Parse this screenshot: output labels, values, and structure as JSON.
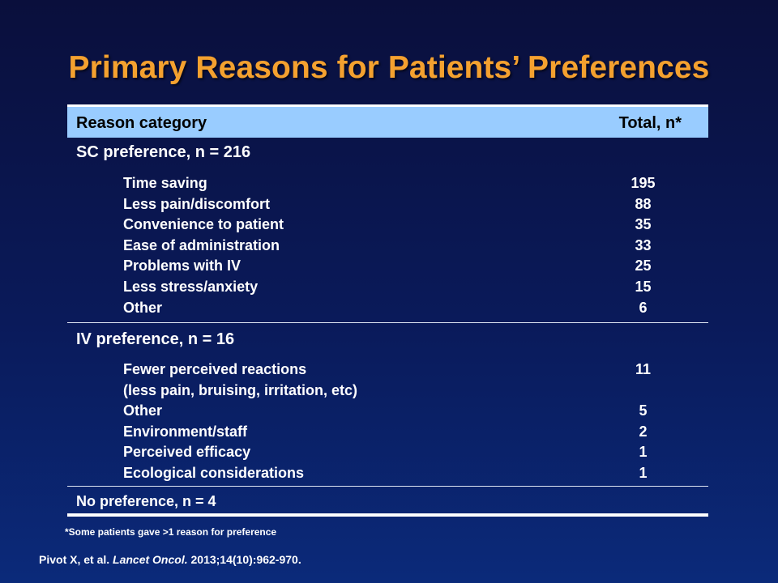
{
  "title": "Primary Reasons for Patients’ Preferences",
  "table": {
    "header": {
      "reason": "Reason category",
      "total": "Total, n*"
    },
    "sections": [
      {
        "title": "SC preference, n = 216",
        "rows": [
          {
            "label": "Time saving",
            "value": "195"
          },
          {
            "label": "Less pain/discomfort",
            "value": "88"
          },
          {
            "label": "Convenience to patient",
            "value": "35"
          },
          {
            "label": "Ease of administration",
            "value": "33"
          },
          {
            "label": "Problems with IV",
            "value": "25"
          },
          {
            "label": "Less stress/anxiety",
            "value": "15"
          },
          {
            "label": "Other",
            "value": "6"
          }
        ]
      },
      {
        "title": "IV preference, n = 16",
        "rows": [
          {
            "label": "Fewer perceived reactions",
            "value": "11"
          },
          {
            "label": "(less pain, bruising, irritation, etc)",
            "value": ""
          },
          {
            "label": "Other",
            "value": "5"
          },
          {
            "label": "Environment/staff",
            "value": "2"
          },
          {
            "label": "Perceived efficacy",
            "value": "1"
          },
          {
            "label": "Ecological considerations",
            "value": "1"
          }
        ]
      },
      {
        "title": "No preference, n = 4",
        "rows": []
      }
    ]
  },
  "footnote": "*Some patients gave >1 reason for preference",
  "citation": {
    "authors": "Pivot X, et al.",
    "journal": "Lancet Oncol.",
    "details": "2013;14(10):962-970."
  }
}
